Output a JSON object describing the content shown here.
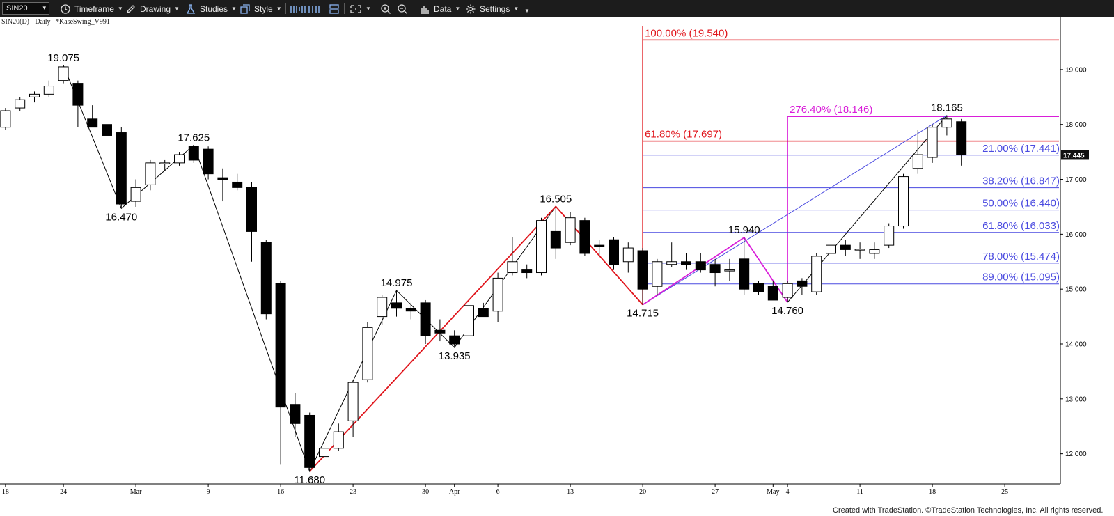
{
  "toolbar": {
    "symbol": "SIN20",
    "timeframe": "Timeframe",
    "drawing": "Drawing",
    "studies": "Studies",
    "style": "Style",
    "data": "Data",
    "settings": "Settings"
  },
  "chart_header": {
    "symbol_info": "SIN20(D) - Daily",
    "study": "*KaseSwing_V991"
  },
  "footer": "Created with TradeStation. ©TradeStation Technologies, Inc. All rights reserved.",
  "colors": {
    "red": "#e0141b",
    "magenta": "#d91ed9",
    "blue": "#4a4ae0",
    "candle": "#000000",
    "label_box": "#111111"
  },
  "chart_data": {
    "type": "candlestick",
    "title": "",
    "ylim": [
      11.45,
      19.95
    ],
    "y_ticks": [
      12.0,
      13.0,
      14.0,
      15.0,
      16.0,
      17.0,
      18.0,
      19.0
    ],
    "y_tick_labels": [
      "12.000",
      "13.000",
      "14.000",
      "15.000",
      "16.000",
      "17.000",
      "18.000",
      "19.000"
    ],
    "x_tick_labels": [
      {
        "label": "18",
        "bar": 0
      },
      {
        "label": "24",
        "bar": 4
      },
      {
        "label": "Mar",
        "bar": 9
      },
      {
        "label": "9",
        "bar": 14
      },
      {
        "label": "16",
        "bar": 19
      },
      {
        "label": "23",
        "bar": 24
      },
      {
        "label": "30",
        "bar": 29
      },
      {
        "label": "Apr",
        "bar": 31
      },
      {
        "label": "6",
        "bar": 34
      },
      {
        "label": "13",
        "bar": 39
      },
      {
        "label": "20",
        "bar": 44
      },
      {
        "label": "27",
        "bar": 49
      },
      {
        "label": "May",
        "bar": 53
      },
      {
        "label": "4",
        "bar": 54
      },
      {
        "label": "11",
        "bar": 59
      },
      {
        "label": "18",
        "bar": 64
      },
      {
        "label": "25",
        "bar": 69
      }
    ],
    "candles": [
      {
        "o": 17.95,
        "h": 18.3,
        "l": 17.9,
        "c": 18.25
      },
      {
        "o": 18.3,
        "h": 18.5,
        "l": 18.25,
        "c": 18.45
      },
      {
        "o": 18.5,
        "h": 18.6,
        "l": 18.4,
        "c": 18.55
      },
      {
        "o": 18.55,
        "h": 18.8,
        "l": 18.5,
        "c": 18.7
      },
      {
        "o": 18.8,
        "h": 19.075,
        "l": 18.75,
        "c": 19.05
      },
      {
        "o": 18.75,
        "h": 18.8,
        "l": 17.95,
        "c": 18.35
      },
      {
        "o": 18.1,
        "h": 18.35,
        "l": 17.95,
        "c": 17.95
      },
      {
        "o": 18.0,
        "h": 18.25,
        "l": 17.75,
        "c": 17.8
      },
      {
        "o": 17.85,
        "h": 17.95,
        "l": 16.47,
        "c": 16.55
      },
      {
        "o": 16.6,
        "h": 17.0,
        "l": 16.5,
        "c": 16.85
      },
      {
        "o": 16.9,
        "h": 17.35,
        "l": 16.8,
        "c": 17.3
      },
      {
        "o": 17.3,
        "h": 17.35,
        "l": 17.15,
        "c": 17.3
      },
      {
        "o": 17.3,
        "h": 17.5,
        "l": 17.25,
        "c": 17.45
      },
      {
        "o": 17.6,
        "h": 17.625,
        "l": 17.3,
        "c": 17.35
      },
      {
        "o": 17.55,
        "h": 17.6,
        "l": 17.0,
        "c": 17.1
      },
      {
        "o": 17.03,
        "h": 17.2,
        "l": 16.6,
        "c": 17.0
      },
      {
        "o": 16.95,
        "h": 17.1,
        "l": 16.8,
        "c": 16.85
      },
      {
        "o": 16.85,
        "h": 16.95,
        "l": 15.5,
        "c": 16.05
      },
      {
        "o": 15.85,
        "h": 15.9,
        "l": 14.45,
        "c": 14.55
      },
      {
        "o": 15.1,
        "h": 15.15,
        "l": 11.8,
        "c": 12.85
      },
      {
        "o": 12.9,
        "h": 13.1,
        "l": 12.3,
        "c": 12.55
      },
      {
        "o": 12.7,
        "h": 12.75,
        "l": 11.68,
        "c": 11.75
      },
      {
        "o": 11.95,
        "h": 12.2,
        "l": 11.8,
        "c": 12.1
      },
      {
        "o": 12.1,
        "h": 12.55,
        "l": 12.05,
        "c": 12.4
      },
      {
        "o": 12.6,
        "h": 13.35,
        "l": 12.3,
        "c": 13.3
      },
      {
        "o": 13.35,
        "h": 14.4,
        "l": 13.3,
        "c": 14.3
      },
      {
        "o": 14.5,
        "h": 14.9,
        "l": 14.35,
        "c": 14.85
      },
      {
        "o": 14.75,
        "h": 14.975,
        "l": 14.5,
        "c": 14.65
      },
      {
        "o": 14.65,
        "h": 14.75,
        "l": 14.45,
        "c": 14.6
      },
      {
        "o": 14.75,
        "h": 14.8,
        "l": 14.0,
        "c": 14.15
      },
      {
        "o": 14.25,
        "h": 14.45,
        "l": 14.05,
        "c": 14.2
      },
      {
        "o": 14.15,
        "h": 14.25,
        "l": 13.935,
        "c": 14.0
      },
      {
        "o": 14.15,
        "h": 14.75,
        "l": 14.1,
        "c": 14.7
      },
      {
        "o": 14.65,
        "h": 14.75,
        "l": 14.5,
        "c": 14.5
      },
      {
        "o": 14.6,
        "h": 15.3,
        "l": 14.4,
        "c": 15.2
      },
      {
        "o": 15.3,
        "h": 15.95,
        "l": 15.25,
        "c": 15.5
      },
      {
        "o": 15.35,
        "h": 15.45,
        "l": 15.2,
        "c": 15.3
      },
      {
        "o": 15.3,
        "h": 16.3,
        "l": 15.25,
        "c": 16.25
      },
      {
        "o": 16.05,
        "h": 16.505,
        "l": 15.55,
        "c": 15.75
      },
      {
        "o": 15.85,
        "h": 16.4,
        "l": 15.8,
        "c": 16.3
      },
      {
        "o": 16.25,
        "h": 16.3,
        "l": 15.6,
        "c": 15.65
      },
      {
        "o": 15.8,
        "h": 15.9,
        "l": 15.6,
        "c": 15.78
      },
      {
        "o": 15.9,
        "h": 15.95,
        "l": 15.35,
        "c": 15.45
      },
      {
        "o": 15.5,
        "h": 15.85,
        "l": 15.3,
        "c": 15.75
      },
      {
        "o": 15.7,
        "h": 15.75,
        "l": 14.715,
        "c": 15.0
      },
      {
        "o": 15.05,
        "h": 15.55,
        "l": 14.9,
        "c": 15.5
      },
      {
        "o": 15.45,
        "h": 15.85,
        "l": 15.4,
        "c": 15.5
      },
      {
        "o": 15.5,
        "h": 15.65,
        "l": 15.35,
        "c": 15.45
      },
      {
        "o": 15.5,
        "h": 15.65,
        "l": 15.3,
        "c": 15.35
      },
      {
        "o": 15.45,
        "h": 15.55,
        "l": 15.05,
        "c": 15.3
      },
      {
        "o": 15.35,
        "h": 15.55,
        "l": 15.15,
        "c": 15.35
      },
      {
        "o": 15.55,
        "h": 15.94,
        "l": 14.9,
        "c": 15.0
      },
      {
        "o": 15.1,
        "h": 15.15,
        "l": 14.9,
        "c": 14.95
      },
      {
        "o": 15.05,
        "h": 15.15,
        "l": 14.8,
        "c": 14.8
      },
      {
        "o": 14.85,
        "h": 15.15,
        "l": 14.76,
        "c": 15.1
      },
      {
        "o": 15.15,
        "h": 15.2,
        "l": 14.9,
        "c": 15.05
      },
      {
        "o": 14.95,
        "h": 15.65,
        "l": 14.9,
        "c": 15.6
      },
      {
        "o": 15.65,
        "h": 15.95,
        "l": 15.5,
        "c": 15.8
      },
      {
        "o": 15.8,
        "h": 15.9,
        "l": 15.6,
        "c": 15.72
      },
      {
        "o": 15.73,
        "h": 15.85,
        "l": 15.55,
        "c": 15.73
      },
      {
        "o": 15.65,
        "h": 15.85,
        "l": 15.55,
        "c": 15.72
      },
      {
        "o": 15.8,
        "h": 16.2,
        "l": 15.75,
        "c": 16.15
      },
      {
        "o": 16.15,
        "h": 17.1,
        "l": 16.1,
        "c": 17.05
      },
      {
        "o": 17.2,
        "h": 17.9,
        "l": 17.1,
        "c": 17.45
      },
      {
        "o": 17.4,
        "h": 18.0,
        "l": 17.3,
        "c": 17.95
      },
      {
        "o": 17.95,
        "h": 18.165,
        "l": 17.8,
        "c": 18.1
      },
      {
        "o": 18.05,
        "h": 18.1,
        "l": 17.25,
        "c": 17.445
      }
    ],
    "swing_points": [
      {
        "bar": 4,
        "value": 19.075,
        "label": "19.075",
        "pos": "above"
      },
      {
        "bar": 8,
        "value": 16.47,
        "label": "16.470",
        "pos": "below"
      },
      {
        "bar": 13,
        "value": 17.625,
        "label": "17.625",
        "pos": "above"
      },
      {
        "bar": 21,
        "value": 11.68,
        "label": "11.680",
        "pos": "below"
      },
      {
        "bar": 27,
        "value": 14.975,
        "label": "14.975",
        "pos": "above"
      },
      {
        "bar": 31,
        "value": 13.935,
        "label": "13.935",
        "pos": "below"
      },
      {
        "bar": 38,
        "value": 16.505,
        "label": "16.505",
        "pos": "above"
      },
      {
        "bar": 44,
        "value": 14.715,
        "label": "14.715",
        "pos": "below"
      },
      {
        "bar": 51,
        "value": 15.94,
        "label": "15.940",
        "pos": "above"
      },
      {
        "bar": 54,
        "value": 14.76,
        "label": "14.760",
        "pos": "below"
      },
      {
        "bar": 65,
        "value": 18.165,
        "label": "18.165",
        "pos": "above"
      }
    ],
    "black_zigzag": [
      {
        "bar": 4,
        "value": 19.075
      },
      {
        "bar": 8,
        "value": 16.47
      },
      {
        "bar": 13,
        "value": 17.625
      },
      {
        "bar": 21,
        "value": 11.68
      },
      {
        "bar": 27,
        "value": 14.975
      },
      {
        "bar": 31,
        "value": 13.935
      },
      {
        "bar": 38,
        "value": 16.505
      }
    ],
    "black_rally_line": [
      {
        "bar": 54,
        "value": 14.76
      },
      {
        "bar": 65,
        "value": 18.165
      }
    ],
    "red_path": [
      {
        "bar": 21,
        "value": 11.68
      },
      {
        "bar": 38,
        "value": 16.505
      },
      {
        "bar": 44,
        "value": 14.715
      }
    ],
    "magenta_path": [
      {
        "bar": 44,
        "value": 14.715
      },
      {
        "bar": 51,
        "value": 15.94
      },
      {
        "bar": 54,
        "value": 14.76
      }
    ],
    "blue_path": [
      {
        "bar": 44,
        "value": 14.715
      },
      {
        "bar": 65,
        "value": 18.165
      }
    ],
    "red_vertical_bar": 44,
    "red_vertical_top": 19.95,
    "magenta_vertical_bar": 54,
    "red_levels": [
      {
        "value": 19.54,
        "label": "100.00% (19.540)"
      },
      {
        "value": 17.697,
        "label": "61.80% (17.697)"
      }
    ],
    "magenta_levels": [
      {
        "value": 18.146,
        "label": "276.40% (18.146)"
      }
    ],
    "blue_levels": [
      {
        "value": 17.441,
        "label": "21.00% (17.441)"
      },
      {
        "value": 16.847,
        "label": "38.20% (16.847)"
      },
      {
        "value": 16.44,
        "label": "50.00% (16.440)"
      },
      {
        "value": 16.033,
        "label": "61.80% (16.033)"
      },
      {
        "value": 15.474,
        "label": "78.00% (15.474)"
      },
      {
        "value": 15.095,
        "label": "89.00% (15.095)"
      }
    ],
    "last_price": 17.445,
    "last_price_label": "17.445"
  }
}
